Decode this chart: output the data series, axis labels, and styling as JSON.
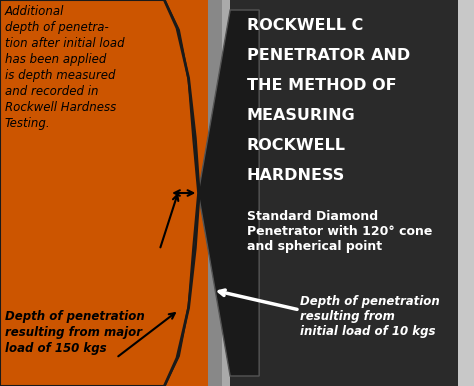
{
  "bg_color": "#c8c8c8",
  "orange_color": "#cc5500",
  "dark_bg": "#2a2a2a",
  "gray_strip": "#888888",
  "light_gray": "#aaaaaa",
  "white": "#ffffff",
  "black": "#000000",
  "title_line1": "ROCKWELL C",
  "title_line2": "PENETRATOR AND",
  "title_line3": "THE METHOD OF",
  "title_line4": "MEASURING",
  "title_line5": "ROCKWELL",
  "title_line6": "HARDNESS",
  "subtitle": "Standard Diamond\nPenetrator with 120° cone\nand spherical point",
  "label_top": "Additional\ndepth of penetra-\ntion after initial load\nhas been applied\nis depth measured\nand recorded in\nRockwell Hardness\nTesting.",
  "label_bottom_left": "Depth of penetration\nresulting from major\nload of 150 kgs",
  "label_bottom_right": "Depth of penetration\nresulting from\ninitial load of 10 kgs"
}
